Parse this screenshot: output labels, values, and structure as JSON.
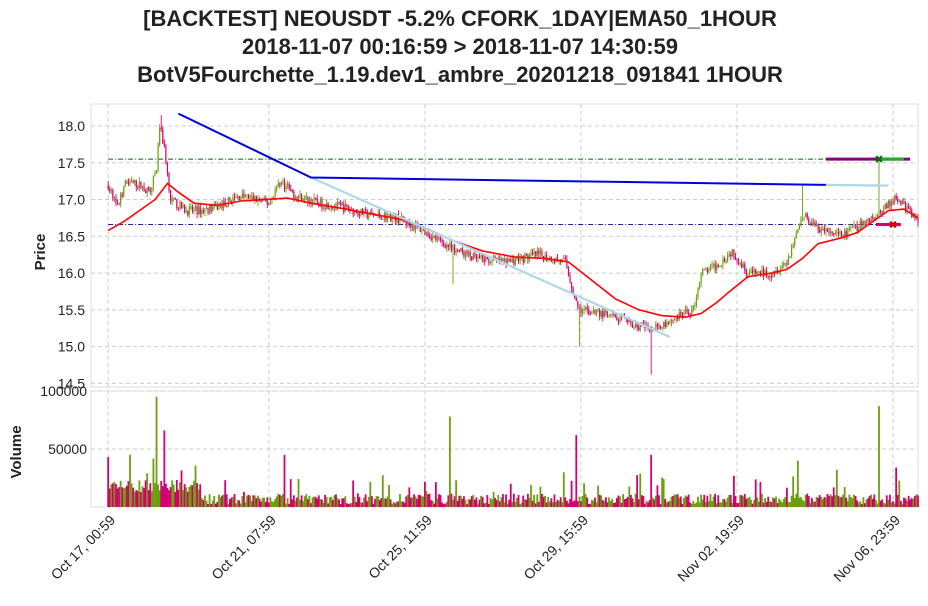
{
  "title_lines": [
    "[BACKTEST] NEOUSDT -5.2% CFORK_1DAY|EMA50_1HOUR",
    "2018-11-07 00:16:59 > 2018-11-07 14:30:59",
    "BotV5Fourchette_1.19.dev1_ambre_20201218_091841 1HOUR"
  ],
  "colors": {
    "up": "#6b9e10",
    "down": "#d5006d",
    "ema": "#ff0000",
    "trend": "#0000dd",
    "trend_light": "#add8e6",
    "level_high": "#006400",
    "level_low": "#00008b",
    "grid": "#cccccc"
  },
  "chart_data": {
    "type": "candlestick",
    "price_panel": {
      "ylabel": "Price",
      "ylim": [
        14.45,
        18.3
      ],
      "yticks": [
        14.5,
        15.0,
        15.5,
        16.0,
        16.5,
        17.0,
        17.5,
        18.0
      ],
      "ytick_labels": [
        "14.5",
        "15.0",
        "15.5",
        "16.0",
        "16.5",
        "17.0",
        "17.5",
        "18.0"
      ]
    },
    "volume_panel": {
      "ylabel": "Volume",
      "ylim": [
        0,
        100000
      ],
      "yticks": [
        50000,
        100000
      ],
      "ytick_labels": [
        "50000",
        "100000"
      ]
    },
    "x_range_hours": [
      -11,
      519
    ],
    "xticks": [
      {
        "label": "Oct 17, 00:59",
        "hour": 0
      },
      {
        "label": "Oct 21, 07:59",
        "hour": 103
      },
      {
        "label": "Oct 25, 11:59",
        "hour": 203
      },
      {
        "label": "Oct 29, 15:59",
        "hour": 303
      },
      {
        "label": "Nov 02, 19:59",
        "hour": 403
      },
      {
        "label": "Nov 06, 23:59",
        "hour": 503
      }
    ],
    "price_path": [
      [
        0,
        17.2
      ],
      [
        6,
        16.9
      ],
      [
        12,
        17.25
      ],
      [
        20,
        17.2
      ],
      [
        26,
        17.1
      ],
      [
        31,
        17.4
      ],
      [
        33,
        18.0
      ],
      [
        36,
        17.7
      ],
      [
        40,
        17.0
      ],
      [
        50,
        16.85
      ],
      [
        60,
        16.85
      ],
      [
        70,
        16.9
      ],
      [
        85,
        17.05
      ],
      [
        95,
        17.0
      ],
      [
        103,
        16.95
      ],
      [
        110,
        17.25
      ],
      [
        120,
        17.05
      ],
      [
        135,
        16.95
      ],
      [
        150,
        16.9
      ],
      [
        165,
        16.8
      ],
      [
        185,
        16.75
      ],
      [
        200,
        16.6
      ],
      [
        215,
        16.4
      ],
      [
        235,
        16.2
      ],
      [
        255,
        16.15
      ],
      [
        275,
        16.25
      ],
      [
        293,
        16.15
      ],
      [
        301,
        15.5
      ],
      [
        315,
        15.45
      ],
      [
        330,
        15.35
      ],
      [
        345,
        15.25
      ],
      [
        355,
        15.3
      ],
      [
        365,
        15.4
      ],
      [
        375,
        15.5
      ],
      [
        380,
        16.0
      ],
      [
        390,
        16.1
      ],
      [
        400,
        16.3
      ],
      [
        410,
        16.0
      ],
      [
        425,
        16.0
      ],
      [
        435,
        16.15
      ],
      [
        445,
        16.8
      ],
      [
        455,
        16.6
      ],
      [
        470,
        16.5
      ],
      [
        485,
        16.7
      ],
      [
        495,
        16.8
      ],
      [
        505,
        17.05
      ],
      [
        515,
        16.8
      ],
      [
        519,
        16.7
      ]
    ],
    "ema_path": [
      [
        0,
        16.58
      ],
      [
        10,
        16.7
      ],
      [
        20,
        16.85
      ],
      [
        30,
        17.0
      ],
      [
        38,
        17.22
      ],
      [
        45,
        17.1
      ],
      [
        55,
        16.95
      ],
      [
        70,
        16.92
      ],
      [
        85,
        16.98
      ],
      [
        100,
        17.0
      ],
      [
        115,
        17.02
      ],
      [
        130,
        16.95
      ],
      [
        150,
        16.88
      ],
      [
        170,
        16.8
      ],
      [
        190,
        16.72
      ],
      [
        205,
        16.6
      ],
      [
        220,
        16.45
      ],
      [
        240,
        16.3
      ],
      [
        260,
        16.22
      ],
      [
        280,
        16.2
      ],
      [
        295,
        16.15
      ],
      [
        310,
        15.9
      ],
      [
        325,
        15.65
      ],
      [
        340,
        15.5
      ],
      [
        355,
        15.42
      ],
      [
        370,
        15.4
      ],
      [
        380,
        15.45
      ],
      [
        390,
        15.6
      ],
      [
        400,
        15.78
      ],
      [
        410,
        15.95
      ],
      [
        425,
        16.0
      ],
      [
        435,
        16.05
      ],
      [
        445,
        16.2
      ],
      [
        455,
        16.4
      ],
      [
        470,
        16.48
      ],
      [
        480,
        16.55
      ],
      [
        490,
        16.7
      ],
      [
        500,
        16.85
      ],
      [
        510,
        16.87
      ],
      [
        519,
        16.75
      ]
    ],
    "spikes": [
      {
        "hour": 34,
        "high": 18.15
      },
      {
        "hour": 221,
        "low": 15.85
      },
      {
        "hour": 302,
        "low": 15.0
      },
      {
        "hour": 348,
        "low": 14.62
      },
      {
        "hour": 445,
        "high": 17.2
      },
      {
        "hour": 494,
        "high": 17.55
      }
    ],
    "volume_spikes": [
      {
        "hour": 0,
        "value": 43000
      },
      {
        "hour": 14,
        "value": 45000
      },
      {
        "hour": 31,
        "value": 95000
      },
      {
        "hour": 36,
        "value": 66000
      },
      {
        "hour": 113,
        "value": 45000
      },
      {
        "hour": 219,
        "value": 78000
      },
      {
        "hour": 300,
        "value": 62000
      },
      {
        "hour": 348,
        "value": 45000
      },
      {
        "hour": 442,
        "value": 40000
      },
      {
        "hour": 467,
        "value": 32000
      },
      {
        "hour": 494,
        "value": 87000
      },
      {
        "hour": 505,
        "value": 34000
      }
    ],
    "levels": [
      {
        "value": 17.55,
        "from_hour": 0,
        "to_hour": 505,
        "color": "#006400"
      },
      {
        "value": 16.66,
        "from_hour": 0,
        "to_hour": 505,
        "color": "#00008b"
      }
    ],
    "trend_line_dark": [
      [
        45,
        18.17
      ],
      [
        130,
        17.3
      ],
      [
        460,
        17.2
      ]
    ],
    "trend_line_light": [
      [
        130,
        17.3
      ],
      [
        360,
        15.13
      ]
    ],
    "trend_line_light_2": [
      [
        460,
        17.2
      ],
      [
        500,
        17.19
      ]
    ],
    "trade_markers": [
      {
        "from_hour": 460,
        "to_hour": 514,
        "value": 17.55,
        "color": "#800080"
      },
      {
        "from_hour": 492,
        "to_hour": 508,
        "value": 16.66,
        "color": "#d5006d"
      }
    ]
  }
}
